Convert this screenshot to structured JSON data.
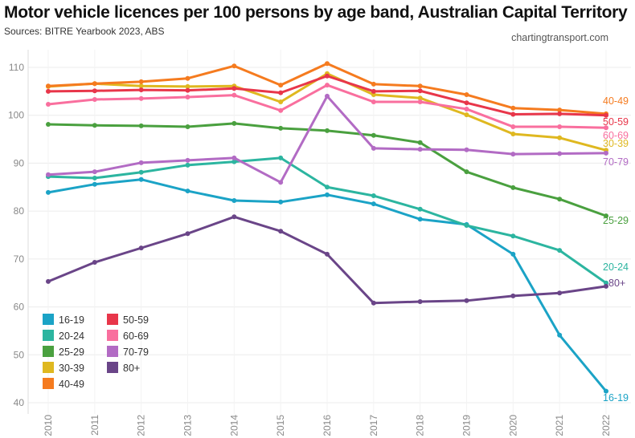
{
  "chart_data": {
    "type": "line",
    "title": "Motor vehicle licences per 100 persons by age band, Australian Capital Territory",
    "subtitle": "Sources: BITRE Yearbook 2023, ABS",
    "credit": "chartingtransport.com",
    "xlabel": "",
    "ylabel": "",
    "x": [
      2010,
      2011,
      2012,
      2013,
      2014,
      2015,
      2016,
      2017,
      2018,
      2019,
      2020,
      2021,
      2022
    ],
    "ylim": [
      40,
      110
    ],
    "yticks": [
      40,
      50,
      60,
      70,
      80,
      90,
      100,
      110
    ],
    "grid": true,
    "legend_placement": "bottom-left",
    "series": [
      {
        "name": "16-19",
        "color": "#1ba3c6",
        "values": [
          83.9,
          85.6,
          86.6,
          84.2,
          82.2,
          81.9,
          83.4,
          81.5,
          78.3,
          77.2,
          71.0,
          54.1,
          42.4
        ]
      },
      {
        "name": "20-24",
        "color": "#2cb5a0",
        "values": [
          87.2,
          86.9,
          88.1,
          89.6,
          90.3,
          91.1,
          85.0,
          83.2,
          80.4,
          77.0,
          74.8,
          71.8,
          65.0
        ]
      },
      {
        "name": "25-29",
        "color": "#4aa03f",
        "values": [
          98.1,
          97.9,
          97.8,
          97.6,
          98.3,
          97.3,
          96.8,
          95.8,
          94.3,
          88.2,
          84.9,
          82.5,
          79.0
        ]
      },
      {
        "name": "30-39",
        "color": "#dfb820",
        "values": [
          106.0,
          106.6,
          106.1,
          106.0,
          106.1,
          102.8,
          108.7,
          104.3,
          103.6,
          100.1,
          96.1,
          95.3,
          92.7
        ]
      },
      {
        "name": "40-49",
        "color": "#f57b1f",
        "values": [
          106.1,
          106.6,
          107.0,
          107.7,
          110.3,
          106.3,
          110.8,
          106.5,
          106.1,
          104.3,
          101.5,
          101.1,
          100.3
        ]
      },
      {
        "name": "50-59",
        "color": "#e8364a",
        "values": [
          105.0,
          105.1,
          105.3,
          105.2,
          105.6,
          104.7,
          108.2,
          105.0,
          105.1,
          102.6,
          100.2,
          100.3,
          100.0
        ]
      },
      {
        "name": "60-69",
        "color": "#f96f9e",
        "values": [
          102.3,
          103.3,
          103.5,
          103.8,
          104.2,
          101.0,
          106.3,
          102.8,
          102.8,
          101.3,
          97.6,
          97.6,
          97.4
        ]
      },
      {
        "name": "70-79",
        "color": "#b26bc4",
        "values": [
          87.6,
          88.2,
          90.1,
          90.6,
          91.1,
          86.0,
          104.0,
          93.1,
          92.9,
          92.8,
          91.9,
          92.0,
          92.1
        ]
      },
      {
        "name": "80+",
        "color": "#6a4588",
        "values": [
          65.3,
          69.3,
          72.3,
          75.3,
          78.8,
          75.8,
          71.0,
          60.8,
          61.1,
          61.3,
          62.3,
          62.9,
          64.3
        ]
      }
    ]
  }
}
